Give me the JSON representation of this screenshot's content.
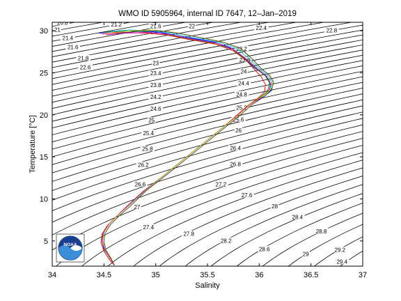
{
  "chart_data": {
    "type": "line",
    "title": "WMO ID 5905964, internal ID 7647, 12–Jan–2019",
    "xlabel": "Salinity",
    "ylabel": "Temperature [°C]",
    "xlim": [
      34,
      37
    ],
    "ylim": [
      2,
      31
    ],
    "xticks": [
      34,
      34.5,
      35,
      35.5,
      36,
      36.5,
      37
    ],
    "xtick_labels": [
      "34",
      "34.5",
      "35",
      "35.5",
      "36",
      "36.5",
      "37"
    ],
    "yticks": [
      5,
      10,
      15,
      20,
      25,
      30
    ],
    "ytick_labels": [
      "5",
      "10",
      "15",
      "20",
      "25",
      "30"
    ],
    "grid": false,
    "logo": "NOAA",
    "density_contours": {
      "note_from_figure": "sigma-theta isopycnals",
      "levels": [
        20.6,
        20.8,
        21,
        21.2,
        21.4,
        21.6,
        21.8,
        22,
        22.2,
        22.4,
        22.6,
        22.8,
        23,
        23.2,
        23.4,
        23.6,
        23.8,
        24,
        24.2,
        24.4,
        24.6,
        24.8,
        25,
        25.2,
        25.4,
        25.6,
        25.8,
        26,
        26.2,
        26.4,
        26.6,
        26.8,
        27,
        27.2,
        27.4,
        27.6,
        27.8,
        28,
        28.2,
        28.4,
        28.6,
        28.8,
        29,
        29.2,
        29.4
      ],
      "labels": [
        {
          "text": "20.8",
          "s": 34.1,
          "t": 30.9
        },
        {
          "text": "21.2",
          "s": 34.62,
          "t": 30.7
        },
        {
          "text": "21",
          "s": 34.05,
          "t": 30.1
        },
        {
          "text": "21.4",
          "s": 34.15,
          "t": 29.1
        },
        {
          "text": "21.6",
          "s": 34.2,
          "t": 28.0
        },
        {
          "text": "21.8",
          "s": 34.3,
          "t": 26.7
        },
        {
          "text": "22",
          "s": 35.35,
          "t": 30.5
        },
        {
          "text": "21.6",
          "s": 35.0,
          "t": 30.5
        },
        {
          "text": "22.4",
          "s": 36.02,
          "t": 30.3
        },
        {
          "text": "22.8",
          "s": 36.7,
          "t": 30.0
        },
        {
          "text": "22.6",
          "s": 34.32,
          "t": 25.6
        },
        {
          "text": "23.2",
          "s": 35.83,
          "t": 27.8
        },
        {
          "text": "23.6",
          "s": 35.86,
          "t": 26.5
        },
        {
          "text": "23",
          "s": 35.0,
          "t": 26.1
        },
        {
          "text": "23.4",
          "s": 35.0,
          "t": 24.9
        },
        {
          "text": "24",
          "s": 35.85,
          "t": 25.1
        },
        {
          "text": "23.8",
          "s": 35.0,
          "t": 23.5
        },
        {
          "text": "24.4",
          "s": 35.85,
          "t": 23.7
        },
        {
          "text": "24.2",
          "s": 35.0,
          "t": 22.1
        },
        {
          "text": "24.8",
          "s": 35.83,
          "t": 22.4
        },
        {
          "text": "24.6",
          "s": 35.0,
          "t": 20.7
        },
        {
          "text": "25.2",
          "s": 35.83,
          "t": 20.8
        },
        {
          "text": "25",
          "s": 34.96,
          "t": 19.3
        },
        {
          "text": "25.6",
          "s": 35.8,
          "t": 19.4
        },
        {
          "text": "25.4",
          "s": 34.93,
          "t": 17.8
        },
        {
          "text": "26",
          "s": 35.8,
          "t": 18.1
        },
        {
          "text": "25.8",
          "s": 34.92,
          "t": 15.9
        },
        {
          "text": "26.4",
          "s": 35.77,
          "t": 16.0
        },
        {
          "text": "26.2",
          "s": 34.88,
          "t": 14.0
        },
        {
          "text": "26.8",
          "s": 35.77,
          "t": 14.1
        },
        {
          "text": "26.6",
          "s": 34.85,
          "t": 11.7
        },
        {
          "text": "27.2",
          "s": 35.63,
          "t": 11.7
        },
        {
          "text": "27.6",
          "s": 35.88,
          "t": 10.4
        },
        {
          "text": "27",
          "s": 34.82,
          "t": 9.0
        },
        {
          "text": "28",
          "s": 36.15,
          "t": 9.1
        },
        {
          "text": "27.4",
          "s": 34.93,
          "t": 6.6
        },
        {
          "text": "28.4",
          "s": 36.37,
          "t": 7.8
        },
        {
          "text": "27.8",
          "s": 35.32,
          "t": 5.8
        },
        {
          "text": "28.8",
          "s": 36.6,
          "t": 6.1
        },
        {
          "text": "28.2",
          "s": 35.68,
          "t": 5.0
        },
        {
          "text": "28.6",
          "s": 36.05,
          "t": 4.0
        },
        {
          "text": "29",
          "s": 36.45,
          "t": 3.4
        },
        {
          "text": "29.2",
          "s": 36.78,
          "t": 3.9
        },
        {
          "text": "29.4",
          "s": 36.8,
          "t": 2.5
        }
      ]
    },
    "series": [
      {
        "color": "#0000ff",
        "s": [
          34.45,
          34.6,
          34.85,
          35.05,
          35.25,
          35.55,
          35.72,
          35.85,
          35.95,
          36.05,
          36.1,
          36.12,
          36.05,
          35.92,
          35.8,
          35.65,
          35.5,
          35.3,
          35.1,
          34.9,
          34.75,
          34.63,
          34.55,
          34.5,
          34.48,
          34.5,
          34.56,
          34.6
        ],
        "t": [
          29.7,
          29.9,
          30.0,
          29.8,
          29.3,
          28.7,
          28.0,
          26.8,
          25.6,
          24.8,
          24.0,
          23.0,
          22.2,
          21.3,
          20.0,
          18.5,
          17.0,
          15.0,
          13.0,
          11.0,
          9.3,
          8.0,
          7.0,
          6.0,
          5.0,
          4.0,
          3.0,
          2.1
        ]
      },
      {
        "color": "#008000",
        "s": [
          34.5,
          34.65,
          34.88,
          35.08,
          35.28,
          35.56,
          35.74,
          35.87,
          35.98,
          36.06,
          36.1,
          36.08,
          36.0,
          35.9,
          35.78,
          35.63,
          35.48,
          35.28,
          35.08,
          34.88,
          34.73,
          34.62,
          34.54,
          34.49,
          34.48,
          34.51,
          34.56,
          34.6
        ],
        "t": [
          29.8,
          30.0,
          29.9,
          29.6,
          29.1,
          28.5,
          27.8,
          26.6,
          25.4,
          24.6,
          23.8,
          22.8,
          22.0,
          21.1,
          19.8,
          18.3,
          16.8,
          14.8,
          12.8,
          10.9,
          9.2,
          7.9,
          6.9,
          5.9,
          4.9,
          3.9,
          2.9,
          2.1
        ]
      },
      {
        "color": "#ff0000",
        "s": [
          34.48,
          34.68,
          34.9,
          35.1,
          35.3,
          35.58,
          35.75,
          35.88,
          35.96,
          36.02,
          36.06,
          36.05,
          35.98,
          35.88,
          35.76,
          35.62,
          35.47,
          35.27,
          35.07,
          34.87,
          34.72,
          34.61,
          34.53,
          34.48,
          34.47,
          34.5,
          34.55,
          34.6
        ],
        "t": [
          29.6,
          29.8,
          29.7,
          29.5,
          29.0,
          28.4,
          27.6,
          26.4,
          25.3,
          24.5,
          23.6,
          22.7,
          21.9,
          21.0,
          19.7,
          18.2,
          16.7,
          14.7,
          12.7,
          10.8,
          9.1,
          7.8,
          6.8,
          5.8,
          4.8,
          3.8,
          2.8,
          2.1
        ]
      },
      {
        "color": "#00bfbf",
        "s": [
          34.55,
          34.75,
          34.95,
          35.15,
          35.35,
          35.62,
          35.78,
          35.9,
          36.0,
          36.08,
          36.12,
          36.1,
          36.02,
          35.91,
          35.79,
          35.64,
          35.49,
          35.29,
          35.09,
          34.89,
          34.74,
          34.62,
          34.54,
          34.49,
          34.48,
          34.51,
          34.56,
          34.6
        ],
        "t": [
          29.9,
          30.1,
          30.0,
          29.7,
          29.2,
          28.6,
          27.9,
          26.7,
          25.5,
          24.7,
          23.9,
          22.9,
          22.1,
          21.2,
          19.9,
          18.4,
          16.9,
          14.9,
          12.9,
          11.0,
          9.2,
          7.9,
          6.9,
          5.9,
          4.9,
          3.9,
          2.9,
          2.1
        ]
      },
      {
        "color": "#bf00bf",
        "s": [
          34.52,
          34.7,
          34.92,
          35.12,
          35.32,
          35.6,
          35.76,
          35.89,
          35.99,
          36.07,
          36.11,
          36.09,
          36.01,
          35.9,
          35.78,
          35.63,
          35.48,
          35.28,
          35.08,
          34.88,
          34.73,
          34.62,
          34.54,
          34.49,
          34.48,
          34.51,
          34.56,
          34.6
        ],
        "t": [
          29.5,
          29.7,
          29.8,
          29.6,
          29.1,
          28.5,
          27.7,
          26.5,
          25.4,
          24.6,
          23.7,
          22.8,
          22.0,
          21.1,
          19.8,
          18.3,
          16.8,
          14.8,
          12.8,
          10.9,
          9.2,
          7.9,
          6.9,
          5.9,
          4.9,
          3.9,
          2.9,
          2.1
        ]
      },
      {
        "color": "#bfbf00",
        "s": [
          34.58,
          34.78,
          34.98,
          35.18,
          35.38,
          35.64,
          35.8,
          35.92,
          36.01,
          36.09,
          36.13,
          36.11,
          36.03,
          35.92,
          35.8,
          35.65,
          35.5,
          35.3,
          35.1,
          34.9,
          34.75,
          34.63,
          34.55,
          34.5,
          34.49,
          34.51,
          34.56,
          34.6
        ],
        "t": [
          29.8,
          30.0,
          30.1,
          29.8,
          29.3,
          28.7,
          28.0,
          26.8,
          25.6,
          24.8,
          24.0,
          23.0,
          22.2,
          21.3,
          20.0,
          18.5,
          17.0,
          15.0,
          13.0,
          11.0,
          9.3,
          8.0,
          7.0,
          6.0,
          5.0,
          4.0,
          3.0,
          2.1
        ]
      },
      {
        "color": "#404040",
        "s": [
          34.62,
          34.82,
          35.02,
          35.22,
          35.42,
          35.66,
          35.82,
          35.93,
          36.02,
          36.1,
          36.14,
          36.12,
          36.04,
          35.93,
          35.81,
          35.66,
          35.51,
          35.31,
          35.11,
          34.91,
          34.76,
          34.64,
          34.56,
          34.51,
          34.5,
          34.52,
          34.57,
          34.6
        ],
        "t": [
          29.7,
          29.9,
          30.0,
          29.7,
          29.2,
          28.6,
          27.9,
          26.7,
          25.5,
          24.7,
          23.9,
          22.9,
          22.1,
          21.2,
          19.9,
          18.4,
          16.9,
          14.9,
          12.9,
          11.0,
          9.2,
          7.9,
          6.9,
          5.9,
          4.9,
          3.9,
          2.9,
          2.1
        ]
      }
    ]
  }
}
